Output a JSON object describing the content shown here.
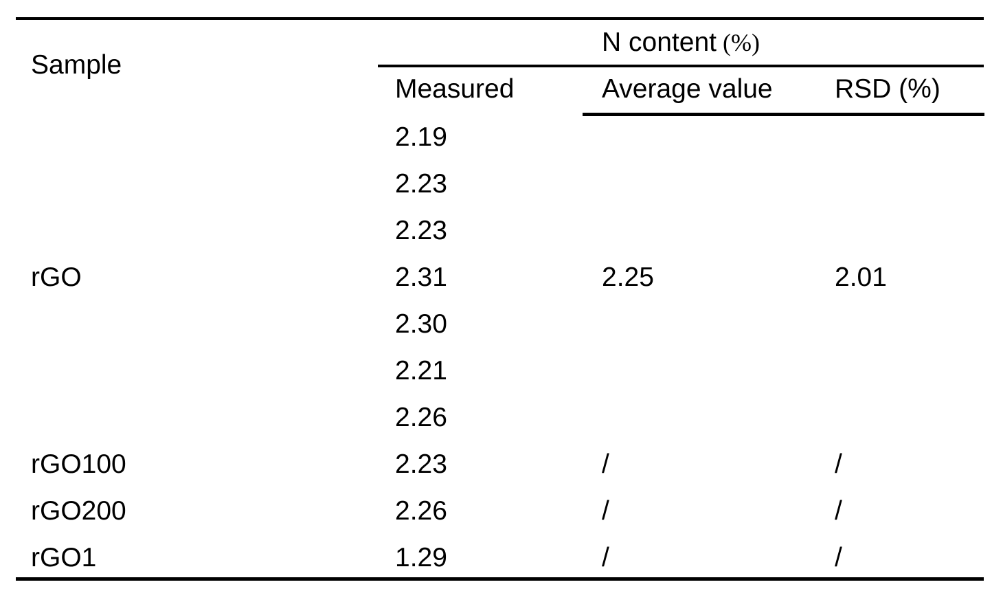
{
  "table": {
    "header": {
      "sample": "Sample",
      "group_main": "N content",
      "group_suffix": "(%)",
      "columns": [
        "Measured",
        "Average value",
        "RSD (%)"
      ]
    },
    "rows": [
      {
        "sample": "",
        "measured": "2.19",
        "average": "",
        "rsd": ""
      },
      {
        "sample": "",
        "measured": "2.23",
        "average": "",
        "rsd": ""
      },
      {
        "sample": "",
        "measured": "2.23",
        "average": "",
        "rsd": ""
      },
      {
        "sample": "rGO",
        "measured": "2.31",
        "average": "2.25",
        "rsd": "2.01"
      },
      {
        "sample": "",
        "measured": "2.30",
        "average": "",
        "rsd": ""
      },
      {
        "sample": "",
        "measured": "2.21",
        "average": "",
        "rsd": ""
      },
      {
        "sample": "",
        "measured": "2.26",
        "average": "",
        "rsd": ""
      },
      {
        "sample": "rGO100",
        "measured": "2.23",
        "average": "/",
        "rsd": "/"
      },
      {
        "sample": "rGO200",
        "measured": "2.26",
        "average": "/",
        "rsd": "/"
      },
      {
        "sample": "rGO1",
        "measured": "1.29",
        "average": "/",
        "rsd": "/"
      }
    ],
    "colors": {
      "text": "#000000",
      "background": "#ffffff",
      "rule": "#000000"
    }
  }
}
